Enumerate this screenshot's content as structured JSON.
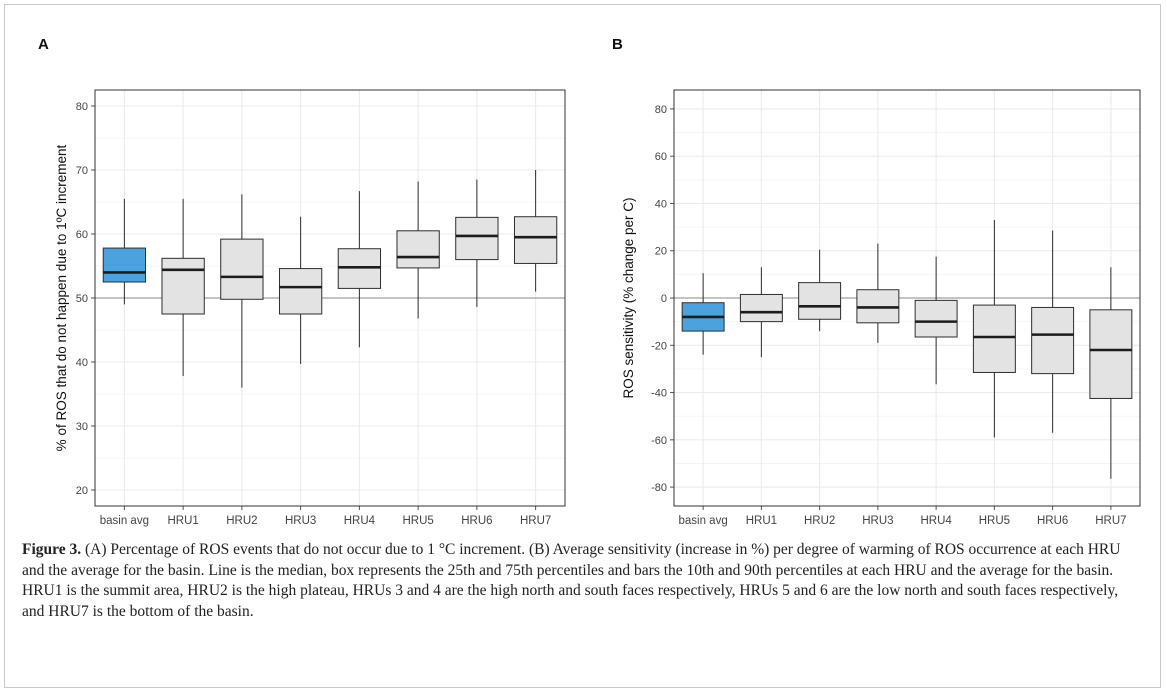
{
  "colors": {
    "highlight": "#4aa3df",
    "box": "#e3e3e3",
    "grid": "#ebebeb",
    "refline": "#b0b0b0",
    "stroke": "#2e2e2e"
  },
  "chart_data": [
    {
      "type": "box",
      "panel_label": "A",
      "title": "",
      "xlabel": "",
      "ylabel": "% of ROS that do not happen due to 1ºC increment",
      "ylim": [
        17.5,
        82.5
      ],
      "yticks": [
        20,
        30,
        40,
        50,
        60,
        70,
        80
      ],
      "reference_line": 50,
      "grid": true,
      "categories": [
        "basin avg",
        "HRU1",
        "HRU2",
        "HRU3",
        "HRU4",
        "HRU5",
        "HRU6",
        "HRU7"
      ],
      "boxes": [
        {
          "low": 49,
          "q1": 52.5,
          "median": 54,
          "q3": 57.8,
          "high": 65.5
        },
        {
          "low": 37.8,
          "q1": 47.5,
          "median": 54.4,
          "q3": 56.2,
          "high": 65.5
        },
        {
          "low": 36,
          "q1": 49.8,
          "median": 53.3,
          "q3": 59.2,
          "high": 66.2
        },
        {
          "low": 39.7,
          "q1": 47.5,
          "median": 51.7,
          "q3": 54.6,
          "high": 62.7
        },
        {
          "low": 42.3,
          "q1": 51.5,
          "median": 54.8,
          "q3": 57.7,
          "high": 66.7
        },
        {
          "low": 46.8,
          "q1": 54.7,
          "median": 56.4,
          "q3": 60.5,
          "high": 68.2
        },
        {
          "low": 48.6,
          "q1": 56,
          "median": 59.7,
          "q3": 62.6,
          "high": 68.5
        },
        {
          "low": 51,
          "q1": 55.4,
          "median": 59.5,
          "q3": 62.7,
          "high": 70
        }
      ]
    },
    {
      "type": "box",
      "panel_label": "B",
      "title": "",
      "xlabel": "",
      "ylabel": "ROS sensitivity (% change per C)",
      "ylim": [
        -88,
        88
      ],
      "yticks": [
        -80,
        -60,
        -40,
        -20,
        0,
        20,
        40,
        60,
        80
      ],
      "reference_line": 0,
      "grid": true,
      "categories": [
        "basin avg",
        "HRU1",
        "HRU2",
        "HRU3",
        "HRU4",
        "HRU5",
        "HRU6",
        "HRU7"
      ],
      "boxes": [
        {
          "low": -24,
          "q1": -14,
          "median": -8,
          "q3": -2,
          "high": 10.5
        },
        {
          "low": -25,
          "q1": -10,
          "median": -6,
          "q3": 1.5,
          "high": 13
        },
        {
          "low": -14,
          "q1": -9,
          "median": -3.5,
          "q3": 6.5,
          "high": 20.5
        },
        {
          "low": -19,
          "q1": -10.5,
          "median": -4,
          "q3": 3.5,
          "high": 23
        },
        {
          "low": -36.5,
          "q1": -16.5,
          "median": -10,
          "q3": -1,
          "high": 17.5
        },
        {
          "low": -59,
          "q1": -31.5,
          "median": -16.5,
          "q3": -3,
          "high": 33
        },
        {
          "low": -57,
          "q1": -32,
          "median": -15.5,
          "q3": -4,
          "high": 28.5
        },
        {
          "low": -76.5,
          "q1": -42.5,
          "median": -22,
          "q3": -5,
          "high": 13
        }
      ]
    }
  ],
  "caption": {
    "label": "Figure 3.",
    "text": " (A) Percentage of ROS events that do not occur due to 1 °C increment. (B) Average sensitivity (increase in %) per degree of warming of ROS occurrence at each HRU and the average for the basin. Line is the median, box represents the 25th and 75th percentiles and bars the 10th and 90th percentiles at each HRU and the average for the basin. HRU1 is the summit area, HRU2 is the high plateau, HRUs 3 and 4 are the high north and south faces respectively, HRUs 5 and 6 are the low north and south faces respectively, and HRU7 is the bottom of the basin."
  }
}
